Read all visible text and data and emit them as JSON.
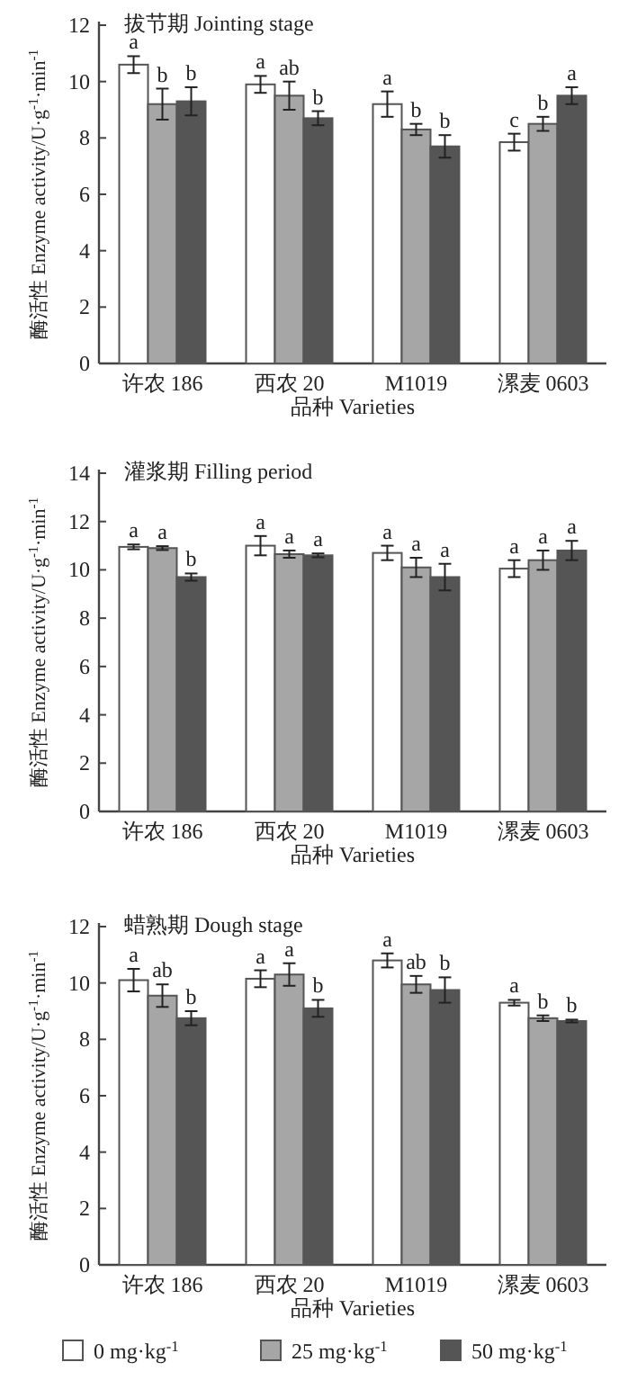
{
  "chart_data": [
    {
      "type": "bar",
      "title": "拔节期 Jointing stage",
      "xlabel": "品种 Varieties",
      "ylabel": "酶活性 Enzyme activity/U·g$^{-1}$·min$^{-1}$",
      "categories": [
        "许农 186",
        "西农 20",
        "M1019",
        "漯麦 0603"
      ],
      "ylim": [
        0,
        12
      ],
      "yticks": [
        0,
        2,
        4,
        6,
        8,
        10,
        12
      ],
      "series": [
        {
          "color": "#ffffff",
          "values": [
            10.6,
            9.9,
            9.2,
            7.85
          ],
          "errors": [
            0.3,
            0.3,
            0.45,
            0.3
          ],
          "value_labels": [
            "a",
            "a",
            "a",
            "c"
          ]
        },
        {
          "color": "#a6a6a6",
          "values": [
            9.2,
            9.5,
            8.3,
            8.5
          ],
          "errors": [
            0.55,
            0.5,
            0.2,
            0.25
          ],
          "value_labels": [
            "b",
            "ab",
            "b",
            "b"
          ]
        },
        {
          "color": "#555555",
          "values": [
            9.3,
            8.7,
            7.7,
            9.5
          ],
          "errors": [
            0.5,
            0.25,
            0.4,
            0.3
          ],
          "value_labels": [
            "b",
            "b",
            "b",
            "a"
          ]
        }
      ]
    },
    {
      "type": "bar",
      "title": "灌浆期 Filling period",
      "xlabel": "品种 Varieties",
      "ylabel": "酶活性 Enzyme activity/U·g$^{-1}$·min$^{-1}$",
      "categories": [
        "许农 186",
        "西农 20",
        "M1019",
        "漯麦 0603"
      ],
      "ylim": [
        0,
        14
      ],
      "yticks": [
        0,
        2,
        4,
        6,
        8,
        10,
        12,
        14
      ],
      "series": [
        {
          "color": "#ffffff",
          "values": [
            10.95,
            11.0,
            10.7,
            10.05
          ],
          "errors": [
            0.1,
            0.4,
            0.3,
            0.35
          ],
          "value_labels": [
            "a",
            "a",
            "a",
            "a"
          ]
        },
        {
          "color": "#a6a6a6",
          "values": [
            10.9,
            10.65,
            10.1,
            10.4
          ],
          "errors": [
            0.08,
            0.15,
            0.4,
            0.4
          ],
          "value_labels": [
            "a",
            "a",
            "a",
            "a"
          ]
        },
        {
          "color": "#555555",
          "values": [
            9.7,
            10.6,
            9.7,
            10.8
          ],
          "errors": [
            0.15,
            0.08,
            0.55,
            0.4
          ],
          "value_labels": [
            "b",
            "a",
            "a",
            "a"
          ]
        }
      ]
    },
    {
      "type": "bar",
      "title": "蜡熟期 Dough stage",
      "xlabel": "品种 Varieties",
      "ylabel": "酶活性 Enzyme activity/U·g$^{-1}$·min$^{-1}$",
      "categories": [
        "许农 186",
        "西农 20",
        "M1019",
        "漯麦 0603"
      ],
      "ylim": [
        0,
        12
      ],
      "yticks": [
        0,
        2,
        4,
        6,
        8,
        10,
        12
      ],
      "legend": "bottom",
      "series": [
        {
          "name": "0 mg·kg$^{-1}$",
          "color": "#ffffff",
          "values": [
            10.1,
            10.15,
            10.8,
            9.3
          ],
          "errors": [
            0.4,
            0.3,
            0.25,
            0.1
          ],
          "value_labels": [
            "a",
            "a",
            "a",
            "a"
          ]
        },
        {
          "name": "25 mg·kg$^{-1}$",
          "color": "#a6a6a6",
          "values": [
            9.55,
            10.3,
            9.95,
            8.75
          ],
          "errors": [
            0.4,
            0.4,
            0.3,
            0.1
          ],
          "value_labels": [
            "ab",
            "a",
            "ab",
            "b"
          ]
        },
        {
          "name": "50 mg·kg$^{-1}$",
          "color": "#555555",
          "values": [
            8.75,
            9.1,
            9.75,
            8.65
          ],
          "errors": [
            0.25,
            0.3,
            0.45,
            0.05
          ],
          "value_labels": [
            "b",
            "b",
            "b",
            "b"
          ]
        }
      ]
    }
  ]
}
